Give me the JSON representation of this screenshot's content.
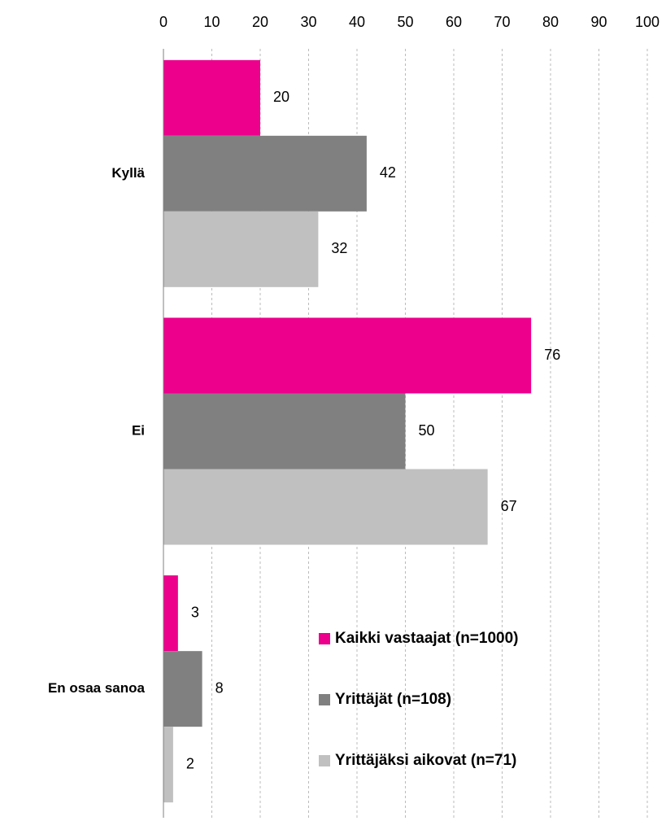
{
  "chart_data": {
    "type": "bar",
    "orientation": "horizontal",
    "categories": [
      "Kyllä",
      "Ei",
      "En osaa sanoa"
    ],
    "series": [
      {
        "name": "Kaikki vastaajat (n=1000)",
        "color": "#ec008c",
        "values": [
          20,
          76,
          3
        ]
      },
      {
        "name": "Yrittäjät (n=108)",
        "color": "#808080",
        "values": [
          42,
          50,
          8
        ]
      },
      {
        "name": "Yrittäjäksi aikovat (n=71)",
        "color": "#c0c0c0",
        "values": [
          32,
          67,
          2
        ]
      }
    ],
    "xlim": [
      0,
      100
    ],
    "xticks": [
      0,
      10,
      20,
      30,
      40,
      50,
      60,
      70,
      80,
      90,
      100
    ],
    "grid": true,
    "legend": "lower right"
  }
}
